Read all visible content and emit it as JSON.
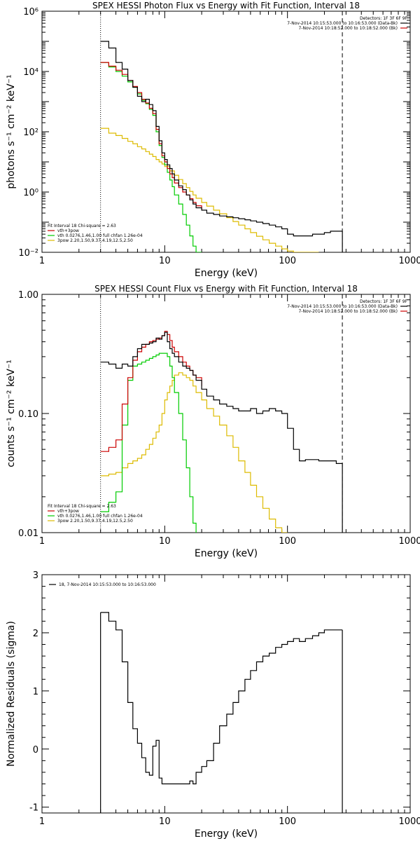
{
  "chart_data": [
    {
      "type": "line",
      "title": "SPEX HESSI Photon Flux vs Energy with Fit Function, Interval 18",
      "xlabel": "Energy (keV)",
      "ylabel": "photons s⁻¹ cm⁻² keV⁻¹",
      "xscale": "log",
      "yscale": "log",
      "xlim": [
        1,
        1000
      ],
      "ylim": [
        0.01,
        1000000
      ],
      "grid": false,
      "x_ticks": [
        1,
        10,
        100,
        1000
      ],
      "x_tick_labels": [
        "1",
        "10",
        "100",
        "1000"
      ],
      "y_ticks": [
        0.01,
        1,
        100,
        10000,
        1000000
      ],
      "y_tick_labels": [
        "10⁻²",
        "10⁰",
        "10²",
        "10⁴",
        "10⁶"
      ],
      "legend_top_right": {
        "header": "Detectors: 1F 3F 6F 9F",
        "lines": [
          {
            "text": "7-Nov-2014 10:15:53.000 to 10:16:53.000 (Data-Bk)",
            "color": "#000000"
          },
          {
            "text": "7-Nov-2014 10:18:52.000 to 10:18:52.000 (Bk)",
            "color": "#cc0000"
          }
        ]
      },
      "legend_bottom_left": {
        "header": "Fit Interval 18   Chi-square = 2.63",
        "lines": [
          {
            "text": "vth+3pow",
            "color": "#cc0000"
          },
          {
            "text": "vth 0.0276,1.46,1.00  full chfan 1.26e-04",
            "color": "#00cc00"
          },
          {
            "text": "3pow 2.20,1.50,9.37,4.19,12.5,2.50",
            "color": "#ddbb00"
          }
        ]
      },
      "vlines": [
        {
          "x": 3,
          "style": "dotted"
        },
        {
          "x": 280,
          "style": "dashed"
        }
      ],
      "series": [
        {
          "name": "Data-Bk",
          "color": "#000000",
          "step": true,
          "x": [
            3,
            3.5,
            4,
            4.5,
            5,
            5.5,
            6,
            6.5,
            7,
            7.5,
            8,
            8.5,
            9,
            9.5,
            10,
            10.5,
            11,
            11.5,
            12,
            13,
            14,
            15,
            16,
            17,
            18,
            20,
            22,
            25,
            28,
            32,
            36,
            40,
            45,
            50,
            56,
            63,
            71,
            80,
            90,
            100,
            112,
            125,
            140,
            160,
            180,
            200,
            224,
            250,
            280
          ],
          "y": [
            100000,
            60000,
            20000,
            12000,
            5000,
            3000,
            1500,
            1000,
            1200,
            800,
            500,
            150,
            50,
            20,
            12,
            8,
            6,
            4,
            2.5,
            1.6,
            1.2,
            0.8,
            0.55,
            0.4,
            0.3,
            0.25,
            0.2,
            0.18,
            0.16,
            0.15,
            0.14,
            0.13,
            0.12,
            0.11,
            0.1,
            0.09,
            0.08,
            0.07,
            0.06,
            0.04,
            0.035,
            0.035,
            0.035,
            0.04,
            0.04,
            0.045,
            0.05,
            0.05,
            0.01
          ]
        },
        {
          "name": "vth+3pow",
          "color": "#cc0000",
          "step": true,
          "x": [
            3,
            3.5,
            4,
            4.5,
            5,
            5.5,
            6,
            6.5,
            7,
            7.5,
            8,
            8.5,
            9,
            9.5,
            10,
            10.5,
            11,
            11.5,
            12,
            13,
            14,
            15,
            16,
            17,
            18,
            20
          ],
          "y": [
            20000,
            15000,
            11000,
            8000,
            5000,
            3200,
            2000,
            1200,
            900,
            600,
            400,
            120,
            40,
            16,
            10,
            6,
            4,
            3,
            2,
            1.4,
            1,
            0.8,
            0.6,
            0.45,
            0.35,
            0.25
          ]
        },
        {
          "name": "vth",
          "color": "#00cc00",
          "step": true,
          "x": [
            3,
            3.5,
            4,
            4.5,
            5,
            5.5,
            6,
            6.5,
            7,
            7.5,
            8,
            8.5,
            9,
            9.5,
            10,
            10.5,
            11,
            11.5,
            12,
            13,
            14,
            15,
            16,
            17,
            18,
            20
          ],
          "y": [
            20000,
            14000,
            10000,
            7000,
            4500,
            3000,
            1800,
            1100,
            850,
            550,
            350,
            100,
            35,
            14,
            8,
            4.5,
            2.5,
            1.5,
            0.8,
            0.4,
            0.18,
            0.08,
            0.035,
            0.016,
            0.01,
            0.01
          ]
        },
        {
          "name": "3pow",
          "color": "#ddbb00",
          "step": true,
          "x": [
            3,
            3.5,
            4,
            4.5,
            5,
            5.5,
            6,
            6.5,
            7,
            7.5,
            8,
            8.5,
            9,
            9.5,
            10,
            11,
            12,
            13,
            14,
            15,
            16,
            17,
            18,
            20,
            22,
            25,
            28,
            32,
            36,
            40,
            45,
            50,
            56,
            63,
            71,
            80,
            90,
            100,
            112,
            125,
            140,
            160,
            180
          ],
          "y": [
            130,
            90,
            75,
            60,
            48,
            40,
            32,
            27,
            22,
            18,
            15,
            12,
            10,
            8.5,
            7,
            5,
            3.6,
            2.6,
            1.9,
            1.4,
            1.05,
            0.8,
            0.62,
            0.45,
            0.34,
            0.25,
            0.19,
            0.14,
            0.105,
            0.08,
            0.06,
            0.045,
            0.034,
            0.026,
            0.02,
            0.016,
            0.013,
            0.011,
            0.01,
            0.01,
            0.01,
            0.01,
            0.01
          ]
        }
      ]
    },
    {
      "type": "line",
      "title": "SPEX HESSI Count Flux vs Energy with Fit Function, Interval 18",
      "xlabel": "Energy (keV)",
      "ylabel": "counts s⁻¹ cm⁻² keV⁻¹",
      "xscale": "log",
      "yscale": "log",
      "xlim": [
        1,
        1000
      ],
      "ylim": [
        0.01,
        1.0
      ],
      "grid": false,
      "x_ticks": [
        1,
        10,
        100,
        1000
      ],
      "x_tick_labels": [
        "1",
        "10",
        "100",
        "1000"
      ],
      "y_ticks": [
        0.01,
        0.1,
        1.0
      ],
      "y_tick_labels": [
        "0.01",
        "0.10",
        "1.00"
      ],
      "legend_top_right": {
        "header": "Detectors: 1F 3F 6F 9F",
        "lines": [
          {
            "text": "7-Nov-2014 10:15:53.000 to 10:16:53.000 (Data-Bk)",
            "color": "#000000"
          },
          {
            "text": "7-Nov-2014 10:18:52.000 to 10:18:52.000 (Bk)",
            "color": "#cc0000"
          }
        ]
      },
      "legend_bottom_left": {
        "header": "Fit Interval 18   Chi-square = 2.63",
        "lines": [
          {
            "text": "vth+3pow",
            "color": "#cc0000"
          },
          {
            "text": "vth 0.0276,1.46,1.00  full chfan 1.26e-04",
            "color": "#00cc00"
          },
          {
            "text": "3pow 2.20,1.50,9.37,4.19,12.5,2.50",
            "color": "#ddbb00"
          }
        ]
      },
      "vlines": [
        {
          "x": 3,
          "style": "dotted"
        },
        {
          "x": 280,
          "style": "dashed"
        }
      ],
      "series": [
        {
          "name": "Data-Bk",
          "color": "#000000",
          "step": true,
          "x": [
            3,
            3.5,
            4,
            4.5,
            5,
            5.5,
            6,
            6.5,
            7,
            7.5,
            8,
            8.5,
            9,
            9.5,
            10,
            10.5,
            11,
            11.5,
            12,
            13,
            14,
            15,
            16,
            17,
            18,
            20,
            22,
            25,
            28,
            32,
            36,
            40,
            45,
            50,
            56,
            63,
            71,
            80,
            90,
            100,
            112,
            125,
            140,
            160,
            180,
            200,
            224,
            250,
            280
          ],
          "y": [
            0.27,
            0.26,
            0.24,
            0.26,
            0.25,
            0.3,
            0.35,
            0.38,
            0.38,
            0.39,
            0.4,
            0.43,
            0.42,
            0.45,
            0.48,
            0.4,
            0.35,
            0.32,
            0.3,
            0.27,
            0.25,
            0.24,
            0.23,
            0.21,
            0.19,
            0.16,
            0.14,
            0.13,
            0.12,
            0.115,
            0.11,
            0.105,
            0.105,
            0.11,
            0.1,
            0.105,
            0.11,
            0.105,
            0.1,
            0.075,
            0.05,
            0.04,
            0.041,
            0.041,
            0.04,
            0.04,
            0.04,
            0.038,
            0.01
          ]
        },
        {
          "name": "vth+3pow",
          "color": "#cc0000",
          "step": true,
          "x": [
            3,
            3.5,
            4,
            4.5,
            5,
            5.5,
            6,
            6.5,
            7,
            7.5,
            8,
            8.5,
            9,
            9.5,
            10,
            10.5,
            11,
            11.5,
            12,
            13,
            14,
            15,
            16,
            17,
            18,
            20
          ],
          "y": [
            0.048,
            0.052,
            0.06,
            0.12,
            0.2,
            0.28,
            0.33,
            0.36,
            0.38,
            0.4,
            0.41,
            0.42,
            0.43,
            0.45,
            0.49,
            0.46,
            0.41,
            0.36,
            0.33,
            0.3,
            0.27,
            0.25,
            0.23,
            0.21,
            0.2,
            0.17
          ]
        },
        {
          "name": "vth",
          "color": "#00cc00",
          "step": true,
          "x": [
            3,
            3.5,
            4,
            4.5,
            5,
            5.5,
            6,
            6.5,
            7,
            7.5,
            8,
            8.5,
            9,
            9.5,
            10,
            10.5,
            11,
            11.5,
            12,
            13,
            14,
            15,
            16,
            17,
            18
          ],
          "y": [
            0.015,
            0.018,
            0.022,
            0.08,
            0.19,
            0.25,
            0.26,
            0.27,
            0.28,
            0.29,
            0.3,
            0.31,
            0.32,
            0.32,
            0.32,
            0.3,
            0.25,
            0.2,
            0.15,
            0.1,
            0.06,
            0.035,
            0.02,
            0.012,
            0.01
          ]
        },
        {
          "name": "3pow",
          "color": "#ddbb00",
          "step": true,
          "x": [
            3,
            3.5,
            4,
            4.5,
            5,
            5.5,
            6,
            6.5,
            7,
            7.5,
            8,
            8.5,
            9,
            9.5,
            10,
            10.5,
            11,
            11.5,
            12,
            13,
            14,
            15,
            16,
            17,
            18,
            20,
            22,
            25,
            28,
            32,
            36,
            40,
            45,
            50,
            56,
            63,
            71,
            80,
            90,
            100
          ],
          "y": [
            0.03,
            0.031,
            0.032,
            0.035,
            0.038,
            0.04,
            0.042,
            0.045,
            0.05,
            0.055,
            0.062,
            0.07,
            0.08,
            0.1,
            0.13,
            0.15,
            0.17,
            0.19,
            0.21,
            0.22,
            0.21,
            0.2,
            0.19,
            0.17,
            0.15,
            0.13,
            0.11,
            0.095,
            0.08,
            0.065,
            0.052,
            0.04,
            0.032,
            0.025,
            0.02,
            0.016,
            0.013,
            0.011,
            0.01,
            0.01
          ]
        }
      ]
    },
    {
      "type": "line",
      "title": "",
      "xlabel": "Energy (keV)",
      "ylabel": "Normalized Residuals (sigma)",
      "xscale": "log",
      "yscale": "linear",
      "xlim": [
        1,
        1000
      ],
      "ylim": [
        -1.1,
        3
      ],
      "grid": false,
      "x_ticks": [
        1,
        10,
        100,
        1000
      ],
      "x_tick_labels": [
        "1",
        "10",
        "100",
        "1000"
      ],
      "y_ticks": [
        -1,
        0,
        1,
        2,
        3
      ],
      "y_tick_labels": [
        "-1",
        "0",
        "1",
        "2",
        "3"
      ],
      "legend_top_left": {
        "header": "",
        "lines": [
          {
            "text": "18,  7-Nov-2014 10:15:53.000 to 10:16:53.000",
            "color": "#000000"
          }
        ]
      },
      "vlines": [],
      "series": [
        {
          "name": "18,  7-Nov-2014 10:15:53.000 to 10:16:53.000",
          "color": "#000000",
          "step": true,
          "x": [
            3,
            3.5,
            4,
            4.5,
            5,
            5.5,
            6,
            6.5,
            7,
            7.5,
            8,
            8.5,
            9,
            9.5,
            10,
            10.5,
            11,
            11.5,
            12,
            13,
            14,
            15,
            16,
            17,
            18,
            20,
            22,
            25,
            28,
            32,
            36,
            40,
            45,
            50,
            56,
            63,
            71,
            80,
            90,
            100,
            112,
            125,
            140,
            160,
            180,
            200,
            224,
            250,
            280
          ],
          "y": [
            2.35,
            2.2,
            2.05,
            1.5,
            0.8,
            0.35,
            0.1,
            -0.15,
            -0.4,
            -0.45,
            0.05,
            0.15,
            -0.5,
            -0.6,
            -0.6,
            -0.6,
            -0.6,
            -0.6,
            -0.6,
            -0.6,
            -0.6,
            -0.6,
            -0.55,
            -0.6,
            -0.4,
            -0.3,
            -0.2,
            0.1,
            0.4,
            0.6,
            0.8,
            1.0,
            1.2,
            1.35,
            1.5,
            1.6,
            1.65,
            1.75,
            1.8,
            1.85,
            1.9,
            1.85,
            1.9,
            1.95,
            2.0,
            2.05,
            2.05,
            2.05,
            2.05
          ]
        }
      ]
    }
  ]
}
